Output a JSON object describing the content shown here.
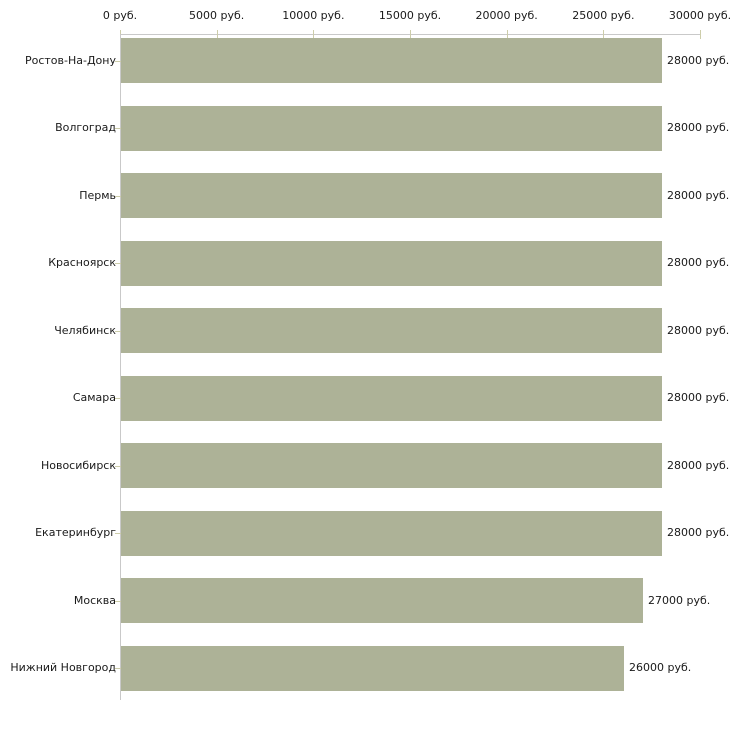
{
  "chart_data": {
    "type": "bar",
    "orientation": "horizontal",
    "title": "",
    "categories": [
      "Ростов-На-Дону",
      "Волгоград",
      "Пермь",
      "Красноярск",
      "Челябинск",
      "Самара",
      "Новосибирск",
      "Екатеринбург",
      "Москва",
      "Нижний Новгород"
    ],
    "values": [
      28000,
      28000,
      28000,
      28000,
      28000,
      28000,
      28000,
      28000,
      27000,
      26000
    ],
    "value_labels": [
      "28000 руб.",
      "28000 руб.",
      "28000 руб.",
      "28000 руб.",
      "28000 руб.",
      "28000 руб.",
      "28000 руб.",
      "28000 руб.",
      "27000 руб.",
      "26000 руб."
    ],
    "x_tick_values": [
      0,
      5000,
      10000,
      15000,
      20000,
      25000,
      30000
    ],
    "x_tick_labels": [
      "0 руб.",
      "5000 руб.",
      "10000 руб.",
      "15000 руб.",
      "20000 руб.",
      "25000 руб.",
      "30000 руб."
    ],
    "xlim": [
      0,
      30000
    ],
    "unit": "руб.",
    "xlabel": "",
    "ylabel": "",
    "grid": false,
    "legend": false,
    "colors": {
      "bar": "#adb297",
      "axis_line": "#c9c9c9",
      "tick": "#cdcdaa",
      "text": "#1a1a1a",
      "background": "#ffffff"
    }
  }
}
